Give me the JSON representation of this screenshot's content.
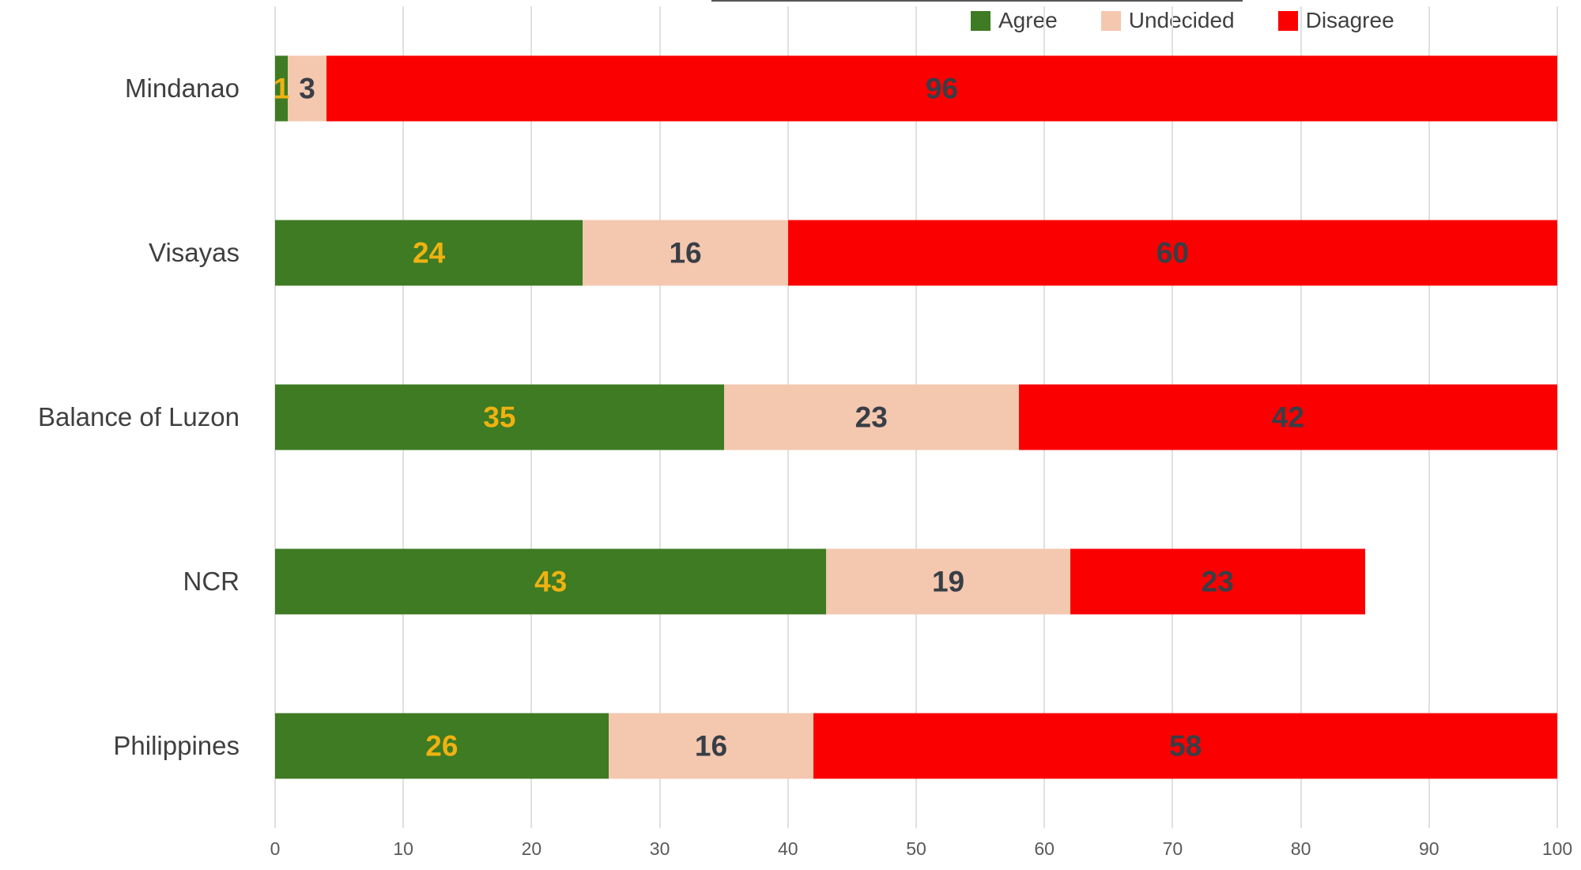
{
  "chart_data": {
    "type": "bar",
    "orientation": "horizontal",
    "stacked": true,
    "title": "",
    "categories": [
      "Mindanao",
      "Visayas",
      "Balance of Luzon",
      "NCR",
      "Philippines"
    ],
    "series": [
      {
        "name": "Agree",
        "color": "#3E7B23",
        "label_color": "#EFB211",
        "values": [
          1,
          24,
          35,
          43,
          26
        ]
      },
      {
        "name": "Undecided",
        "color": "#F4C7AF",
        "label_color": "#383E46",
        "values": [
          3,
          16,
          23,
          19,
          16
        ]
      },
      {
        "name": "Disagree",
        "color": "#FB0000",
        "label_color": "#383E46",
        "values": [
          96,
          60,
          42,
          23,
          58
        ]
      }
    ],
    "row_totals": [
      100,
      100,
      100,
      85,
      100
    ],
    "x_axis": {
      "min": 0,
      "max": 100,
      "tick_interval": 10,
      "tick_labels": [
        "0",
        "10",
        "20",
        "30",
        "40",
        "50",
        "60",
        "70",
        "80",
        "90",
        "100"
      ]
    },
    "legend": {
      "position": "top-right",
      "items": [
        "Agree",
        "Undecided",
        "Disagree"
      ]
    },
    "grid": true
  },
  "colors": {
    "background": "#FFFFFF",
    "gridline": "#E0E0E0",
    "category_label": "#3F3F3F",
    "tick_label": "#595959",
    "legend_label": "#3F3F3F"
  }
}
